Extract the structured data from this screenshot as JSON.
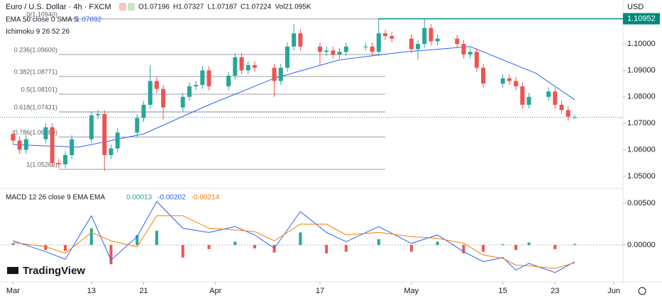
{
  "chart_data": [
    {
      "type": "candlestick",
      "title": "Euro / U.S. Dollar · 4h · FXCM",
      "quote": [
        "O1.07196",
        "H1.07327",
        "L1.07187",
        "C1.07224",
        "Vol21.095K"
      ],
      "ema_label": "EMA 50 close 0 SMA 5",
      "ichimoku_label": "Ichimoku 9 26 52 26",
      "currency": "USD",
      "brand": "TradingView",
      "up_color": "#26a69a",
      "down_color": "#ef5350",
      "x": [
        0,
        1,
        2,
        5,
        6,
        7,
        8,
        9,
        12,
        13,
        14,
        15,
        16,
        19,
        20,
        21,
        22,
        23,
        26,
        27,
        28,
        29,
        30,
        33,
        34,
        35,
        36,
        37,
        40,
        41,
        42,
        43,
        44,
        47,
        48,
        49,
        50,
        51,
        54,
        55,
        56,
        57,
        58,
        61,
        62,
        63,
        64,
        65,
        68,
        69,
        70,
        71,
        72,
        75,
        76,
        77,
        78,
        79,
        82,
        83,
        84,
        85,
        86
      ],
      "open": [
        1.066,
        1.0635,
        1.06,
        1.064,
        1.0685,
        1.055,
        1.0545,
        1.058,
        1.064,
        1.073,
        1.0735,
        1.058,
        1.0605,
        1.0665,
        1.072,
        1.077,
        1.086,
        1.083,
        1.076,
        1.08,
        1.084,
        1.0845,
        1.09,
        1.084,
        1.088,
        1.095,
        1.09,
        1.092,
        1.091,
        1.086,
        1.091,
        1.099,
        1.104,
        1.099,
        1.097,
        1.0975,
        1.096,
        1.097,
        1.099,
        1.099,
        1.097,
        1.104,
        1.103,
        1.102,
        1.098,
        1.1,
        1.106,
        1.101,
        1.102,
        1.1,
        1.096,
        1.097,
        1.091,
        1.085,
        1.087,
        1.086,
        1.084,
        1.077,
        1.08,
        1.082,
        1.077,
        1.075,
        1.07196
      ],
      "high": [
        1.0675,
        1.065,
        1.0655,
        1.07,
        1.07,
        1.0565,
        1.0595,
        1.0655,
        1.0745,
        1.075,
        1.075,
        1.062,
        1.068,
        1.0735,
        1.0785,
        1.092,
        1.0875,
        1.0845,
        1.0815,
        1.0855,
        1.086,
        1.0915,
        1.0915,
        1.0895,
        1.0965,
        1.0965,
        1.0935,
        1.0935,
        1.0925,
        1.0925,
        1.1005,
        1.1075,
        1.1055,
        1.1005,
        1.099,
        1.099,
        1.0985,
        1.1005,
        1.1005,
        1.1005,
        1.1095,
        1.1055,
        1.1045,
        1.1035,
        1.1015,
        1.1095,
        1.1075,
        1.1035,
        1.1035,
        1.1015,
        1.0985,
        1.0985,
        1.0925,
        1.0885,
        1.0885,
        1.0875,
        1.0855,
        1.0815,
        1.0835,
        1.0835,
        1.0785,
        1.0765,
        1.07327
      ],
      "low": [
        1.062,
        1.0585,
        1.0585,
        1.0625,
        1.0535,
        1.053,
        1.053,
        1.0565,
        1.0625,
        1.0715,
        1.052,
        1.0565,
        1.059,
        1.065,
        1.0705,
        1.0755,
        1.0815,
        1.0715,
        1.0745,
        1.0785,
        1.0825,
        1.083,
        1.0825,
        1.0825,
        1.0865,
        1.0885,
        1.0885,
        1.0895,
        1.08,
        1.0845,
        1.0895,
        1.0975,
        1.0975,
        1.092,
        1.0955,
        1.0945,
        1.0945,
        1.0955,
        1.0975,
        1.0955,
        1.0955,
        1.1015,
        1.1005,
        1.0965,
        1.094,
        1.0985,
        1.0995,
        1.0995,
        1.0985,
        1.0945,
        1.0945,
        1.0895,
        1.0835,
        1.0835,
        1.0845,
        1.0825,
        1.0755,
        1.0755,
        1.0785,
        1.0755,
        1.0735,
        1.071,
        1.07187
      ],
      "close": [
        1.0635,
        1.06,
        1.064,
        1.0685,
        1.055,
        1.0545,
        1.058,
        1.064,
        1.073,
        1.0735,
        1.058,
        1.0605,
        1.0665,
        1.072,
        1.077,
        1.086,
        1.083,
        1.076,
        1.08,
        1.084,
        1.0845,
        1.09,
        1.084,
        1.088,
        1.095,
        1.09,
        1.092,
        1.091,
        1.086,
        1.091,
        1.099,
        1.104,
        1.099,
        1.097,
        1.0975,
        1.096,
        1.097,
        1.099,
        1.099,
        1.097,
        1.104,
        1.103,
        1.102,
        1.098,
        1.1,
        1.106,
        1.101,
        1.102,
        1.1,
        1.096,
        1.097,
        1.091,
        1.085,
        1.087,
        1.086,
        1.084,
        1.077,
        1.08,
        1.082,
        1.077,
        1.075,
        1.0725,
        1.07224
      ],
      "ema": {
        "color": "#2962ff",
        "x": [
          0,
          10,
          20,
          30,
          40,
          50,
          60,
          70,
          80,
          86
        ],
        "values": [
          1.062,
          1.061,
          1.066,
          1.077,
          1.087,
          1.094,
          1.097,
          1.099,
          1.089,
          1.07892
        ]
      },
      "price_line": 1.10952,
      "fib_x": [
        7,
        57
      ],
      "fib": [
        {
          "label": "0(1.10940)",
          "value": 1.1094
        },
        {
          "label": "0.236(1.09600)",
          "value": 1.096
        },
        {
          "label": "0.382(1.08771)",
          "value": 1.08771
        },
        {
          "label": "0.5(1.08101)",
          "value": 1.08101
        },
        {
          "label": "0.618(1.07431)",
          "value": 1.07431
        },
        {
          "label": "0.786(1.06480)",
          "value": 1.0648
        },
        {
          "label": "1(1.05263)",
          "value": 1.05263
        }
      ],
      "xlim": [
        -2,
        93.4
      ],
      "xticks": [
        {
          "value": 0,
          "label": "Mar"
        },
        {
          "value": 12,
          "label": "13"
        },
        {
          "value": 20,
          "label": "21"
        },
        {
          "value": 31,
          "label": "Apr"
        },
        {
          "value": 47,
          "label": "17"
        },
        {
          "value": 61,
          "label": "May"
        },
        {
          "value": 75,
          "label": "15"
        },
        {
          "value": 83,
          "label": "23"
        },
        {
          "value": 92,
          "label": "Jun"
        }
      ],
      "ylim": [
        1.0457,
        1.1166
      ],
      "yticks": [
        {
          "value": 1.05,
          "label": "1.05000"
        },
        {
          "value": 1.06,
          "label": "1.06000"
        },
        {
          "value": 1.07,
          "label": "1.07000"
        },
        {
          "value": 1.08,
          "label": "1.08000"
        },
        {
          "value": 1.09,
          "label": "1.09000"
        },
        {
          "value": 1.1,
          "label": "1.10000"
        }
      ]
    },
    {
      "type": "line",
      "title": "MACD 12 26 close 9 EMA EMA",
      "x": [
        0,
        5,
        8,
        12,
        15,
        19,
        22,
        26,
        30,
        34,
        37,
        40,
        44,
        48,
        51,
        56,
        61,
        65,
        69,
        72,
        75,
        77,
        79,
        83,
        86
      ],
      "series": [
        {
          "type": "bar",
          "color": "#26a69a",
          "negative_color": "#ef5350",
          "values": [
            0.0002,
            -0.0006,
            -0.0007,
            0.002,
            -0.0023,
            0.0012,
            0.0017,
            -0.0015,
            -0.0005,
            0.0004,
            -0.0004,
            -0.0009,
            0.0015,
            -0.001,
            -0.0008,
            0.0007,
            -0.0008,
            0.0004,
            -0.001,
            -0.0008,
            0.0001,
            -0.0006,
            0.0003,
            -0.0005,
            0.00013
          ]
        },
        {
          "type": "line",
          "color": "#2962ff",
          "values": [
            0.0005,
            -0.0008,
            -0.0017,
            0.0035,
            -0.0018,
            0.001,
            0.0052,
            0.002,
            0.0015,
            0.0022,
            0.0012,
            -0.0004,
            0.004,
            0.0015,
            0.0004,
            0.0022,
            0.0002,
            0.0012,
            -0.0008,
            -0.002,
            -0.0015,
            -0.003,
            -0.0022,
            -0.0033,
            -0.00202
          ]
        },
        {
          "type": "line",
          "color": "#f57c00",
          "values": [
            0.0003,
            -0.0002,
            -0.001,
            0.0015,
            0.0005,
            -0.0002,
            0.0035,
            0.0035,
            0.002,
            0.0018,
            0.0016,
            0.0005,
            0.0025,
            0.0025,
            0.0012,
            0.0015,
            0.001,
            0.0008,
            0.0002,
            -0.0012,
            -0.0016,
            -0.0024,
            -0.0025,
            -0.0028,
            -0.00214
          ]
        }
      ],
      "xlim": [
        -2,
        93.4
      ],
      "ylim": [
        -0.00415,
        0.00644
      ],
      "yticks": [
        {
          "value": 0,
          "label": "0.00000"
        },
        {
          "value": 0.005,
          "label": "0.00500"
        }
      ]
    }
  ]
}
